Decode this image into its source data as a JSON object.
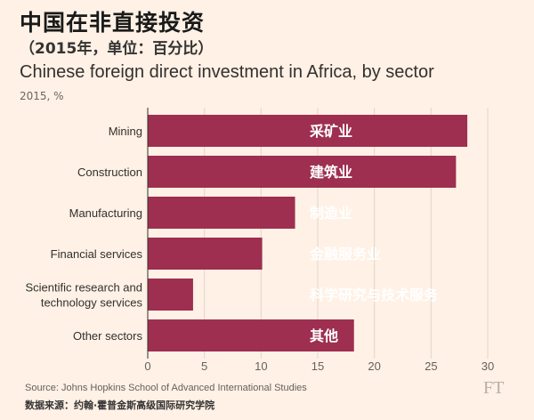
{
  "header": {
    "title_cn": "中国在非直接投资",
    "subtitle_cn": "（2015年，单位：百分比）",
    "title_en": "Chinese foreign direct investment in Africa, by sector",
    "unit": "2015, %"
  },
  "footer": {
    "source": "Source: Johns Hopkins School of Advanced International Studies",
    "source_cn": "数据来源：约翰·霍普金斯高级国际研究学院",
    "logo": "FT"
  },
  "colors": {
    "background": "#fff1e5",
    "bar": "#9e2f50",
    "grid": "#e2d5c9",
    "bar_label": "#ffffff"
  },
  "chart_data": {
    "type": "bar",
    "orientation": "horizontal",
    "categories": [
      [
        "Mining"
      ],
      [
        "Construction"
      ],
      [
        "Manufacturing"
      ],
      [
        "Financial services"
      ],
      [
        "Scientific research and",
        "technology services"
      ],
      [
        "Other sectors"
      ]
    ],
    "category_labels_cn": [
      "采矿业",
      "建筑业",
      "制造业",
      "金融服务业",
      "科学研究与技术服务",
      "其他"
    ],
    "values": [
      28.2,
      27.2,
      13.0,
      10.1,
      4.0,
      18.2
    ],
    "xlim": [
      0,
      30
    ],
    "xticks": [
      0,
      5,
      10,
      15,
      20,
      25,
      30
    ],
    "grid": true,
    "legend": "none"
  }
}
